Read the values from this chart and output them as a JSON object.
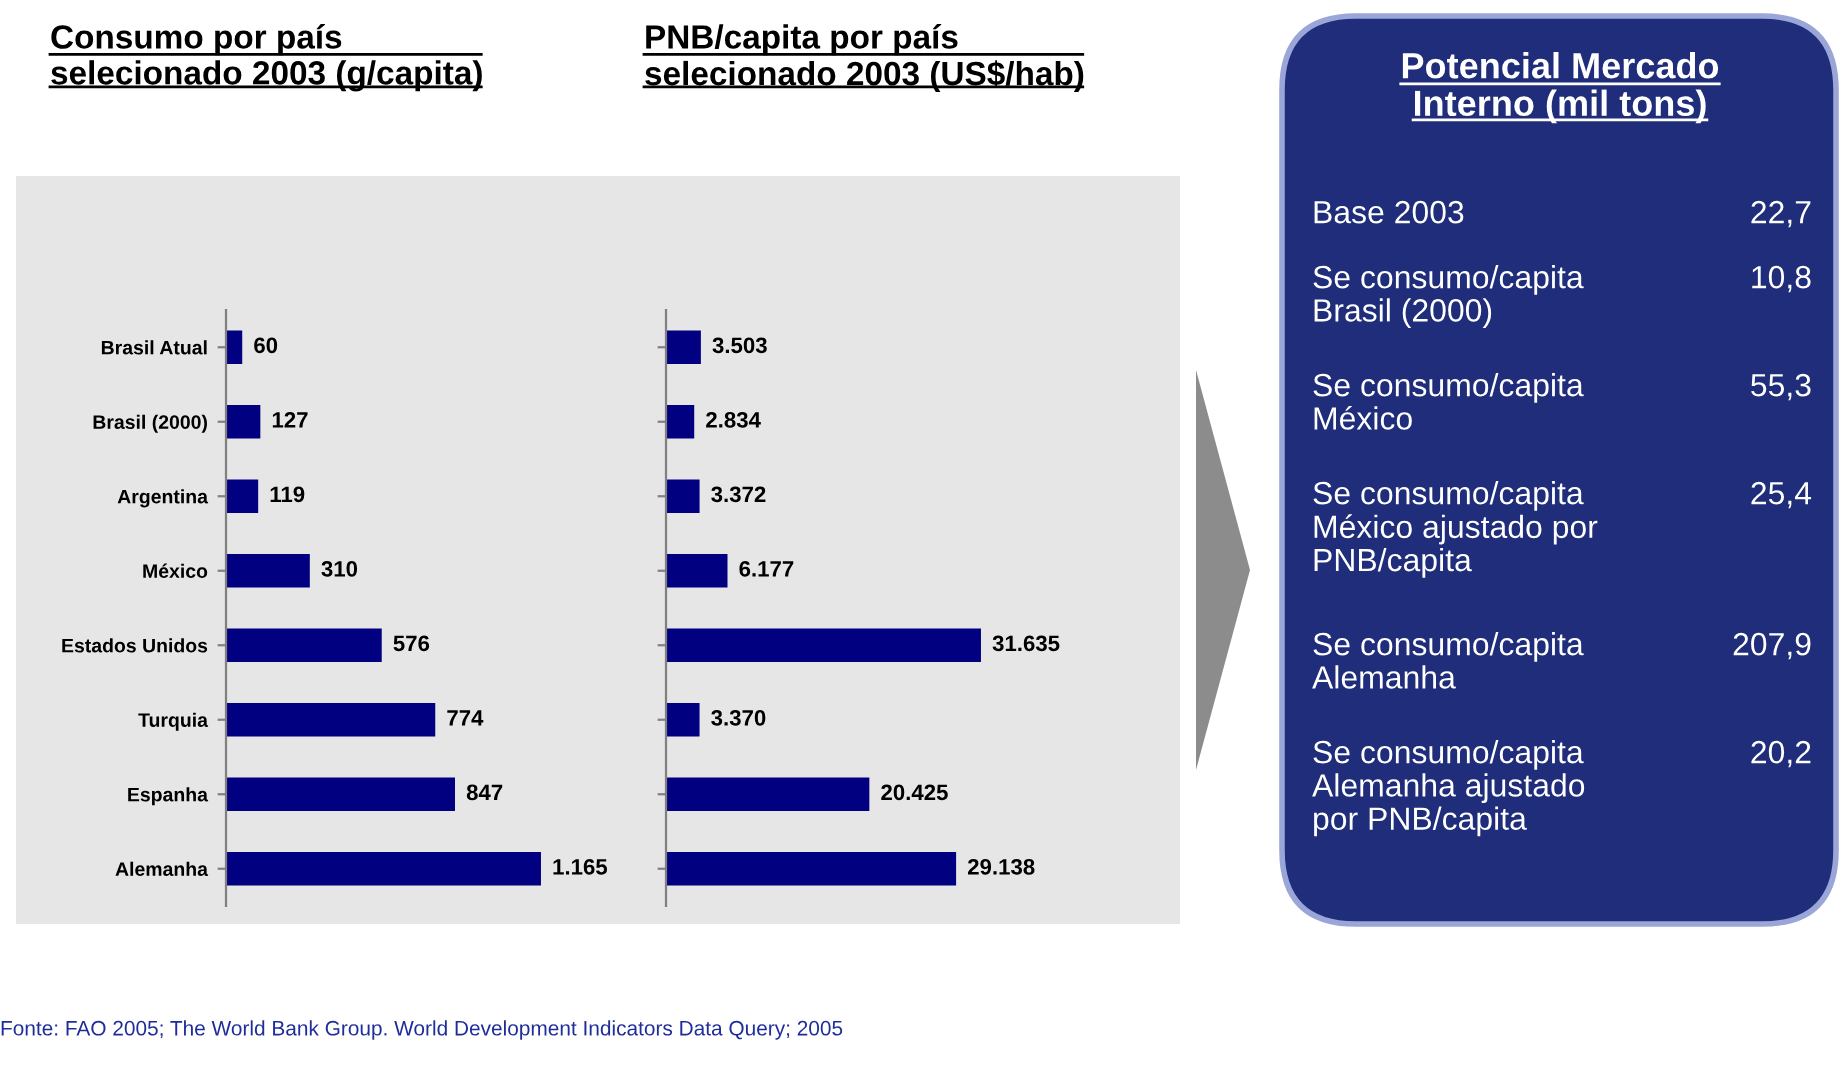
{
  "chart_data": [
    {
      "type": "bar",
      "orientation": "horizontal",
      "title": "Consumo por país\nselecionado 2003 (g/capita)",
      "categories": [
        "Brasil Atual",
        "Brasil (2000)",
        "Argentina",
        "México",
        "Estados Unidos",
        "Turquia",
        "Espanha",
        "Alemanha"
      ],
      "values": [
        60,
        127,
        119,
        310,
        576,
        774,
        847,
        1165
      ],
      "value_labels": [
        "60",
        "127",
        "119",
        "310",
        "576",
        "774",
        "847",
        "1.165"
      ],
      "color": "#000080",
      "annotations": [
        "Fonte: FAO 2005; The World Bank Group. World Development Indicators Data Query; 2005"
      ]
    },
    {
      "type": "bar",
      "orientation": "horizontal",
      "title": "PNB/capita por país\nselecionado 2003 (US$/hab)",
      "categories": [
        null,
        null,
        null,
        null,
        null,
        null,
        null,
        null
      ],
      "values": [
        3503,
        2834,
        3372,
        6177,
        31635,
        3370,
        20425,
        29138
      ],
      "value_labels": [
        "3.503",
        "2.834",
        "3.372",
        "6.177",
        "31.635",
        "3.370",
        "20.425",
        "29.138"
      ],
      "color": "#000080"
    },
    {
      "type": "other",
      "title": "Potencial Mercado\nInterno (mil tons)",
      "categories": [
        "Base 2003",
        "Se consumo/capita\nBrasil (2000)",
        "Se consumo/capita\nMéxico",
        "Se consumo/capita\nMéxico ajustado por\nPNB/capita",
        "Se consumo/capita\nAlemanha",
        "Se consumo/capita\nAlemanha ajustado\npor PNB/capita"
      ],
      "value_labels": [
        "22,7",
        "10,8",
        "55,3",
        "25,4",
        "207,9",
        "20,2"
      ],
      "color": "#1f2d7a"
    }
  ]
}
